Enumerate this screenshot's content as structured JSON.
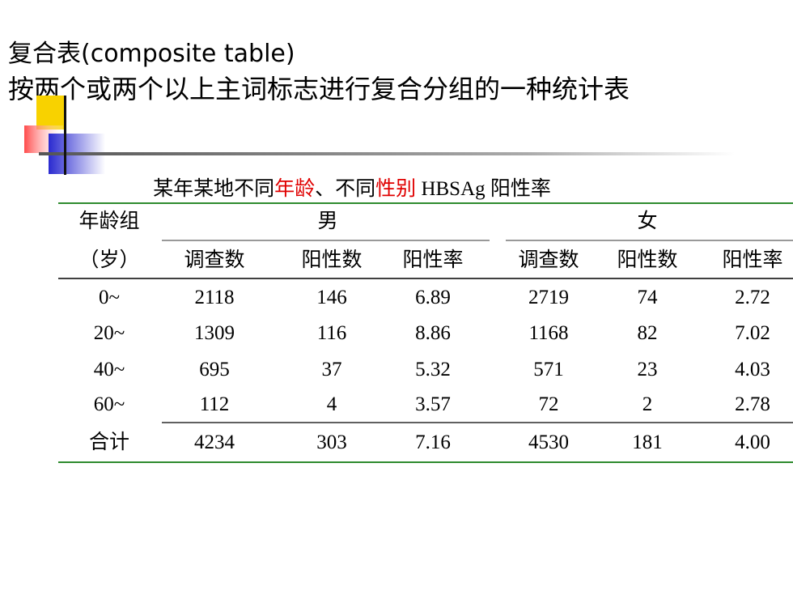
{
  "header": {
    "title": "复合表(composite table)",
    "subtitle": "按两个或两个以上主词标志进行复合分组的一种统计表"
  },
  "table": {
    "caption": [
      "某年某地不同",
      "年龄",
      "、不同",
      "性别",
      " HBSAg 阳性率"
    ],
    "group_header": [
      "年龄组",
      "男",
      "女"
    ],
    "sub_header": [
      "（岁）",
      "调查数",
      "阳性数",
      "阳性率",
      "调查数",
      "阳性数",
      "阳性率"
    ],
    "rows": [
      [
        "0~",
        "2118",
        "146",
        "6.89",
        "2719",
        "74",
        "2.72"
      ],
      [
        "20~",
        "1309",
        "116",
        "8.86",
        "1168",
        "82",
        "7.02"
      ],
      [
        "40~",
        "695",
        "37",
        "5.32",
        "571",
        "23",
        "4.03"
      ],
      [
        "60~",
        "112",
        "4",
        "3.57",
        "72",
        "2",
        "2.78"
      ],
      [
        "合计",
        "4234",
        "303",
        "7.16",
        "4530",
        "181",
        "4.00"
      ]
    ]
  }
}
